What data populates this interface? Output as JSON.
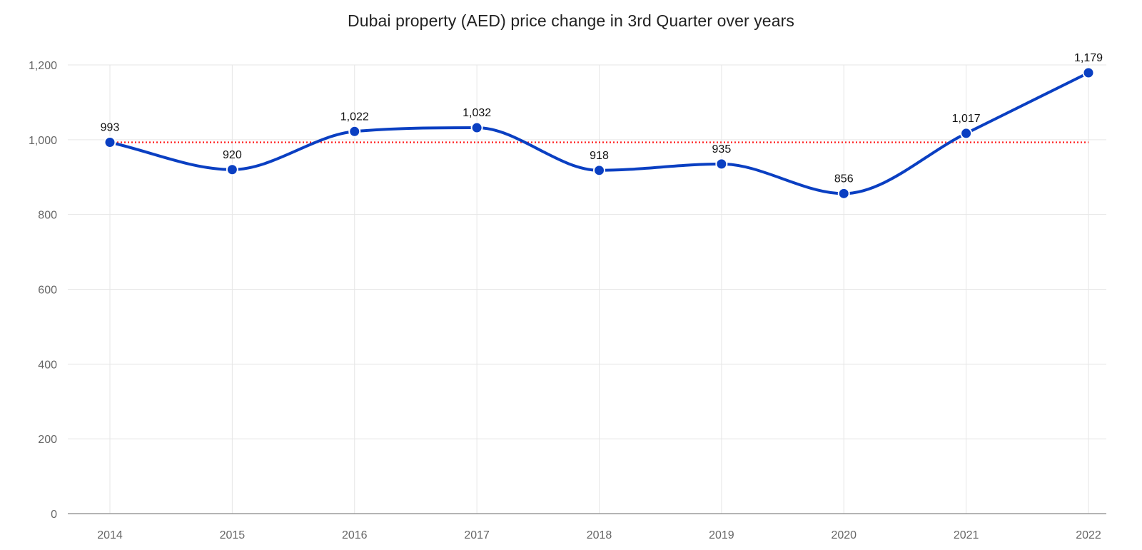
{
  "chart_data": {
    "type": "line",
    "title": "Dubai property (AED) price change in 3rd Quarter over years",
    "xlabel": "",
    "ylabel": "",
    "categories": [
      "2014",
      "2015",
      "2016",
      "2017",
      "2018",
      "2019",
      "2020",
      "2021",
      "2022"
    ],
    "series": [
      {
        "values": [
          993,
          920,
          1022,
          1032,
          918,
          935,
          856,
          1017,
          1179
        ],
        "value_labels": [
          "993",
          "920",
          "1,022",
          "1,032",
          "918",
          "935",
          "856",
          "1,017",
          "1,179"
        ],
        "color": "#0a3fc2",
        "smooth": true
      }
    ],
    "reference_line": {
      "value": 993,
      "color": "#ff2020",
      "style": "dotted"
    },
    "ylim": [
      0,
      1200
    ],
    "yticks": [
      0,
      200,
      400,
      600,
      800,
      1000,
      1200
    ],
    "ytick_labels": [
      "0",
      "200",
      "400",
      "600",
      "800",
      "1,000",
      "1,200"
    ],
    "grid": true,
    "legend": "none"
  }
}
